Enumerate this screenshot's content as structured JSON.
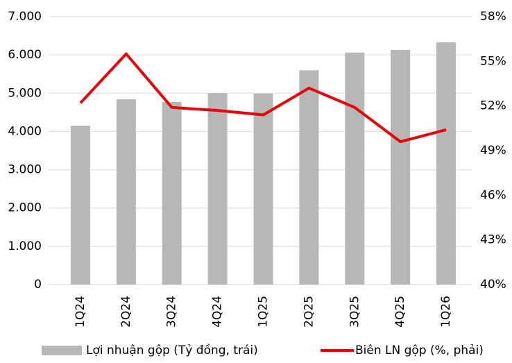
{
  "chart_data": {
    "type": "bar",
    "categories": [
      "1Q24",
      "2Q24",
      "3Q24",
      "4Q24",
      "1Q25",
      "2Q25",
      "3Q25",
      "4Q25",
      "1Q26"
    ],
    "series": [
      {
        "name": "Lợi nhuận gộp (Tỷ đồng, trái)",
        "color": "#b7b7b7",
        "type": "bar",
        "values": [
          4150,
          4840,
          4770,
          5000,
          4990,
          5600,
          6060,
          6130,
          6330
        ]
      },
      {
        "name": "Biên LN gộp (%, phải)",
        "color": "#e8000b",
        "type": "line",
        "axis": "y2",
        "values": [
          52.2,
          55.5,
          51.9,
          51.7,
          51.4,
          53.2,
          51.9,
          49.6,
          50.4
        ]
      }
    ],
    "ylim": [
      0,
      7000
    ],
    "yticks": [
      0,
      {
        "value": 1000,
        "label": "1.000"
      },
      {
        "value": 2000,
        "label": "2.000"
      },
      {
        "value": 3000,
        "label": "3.000"
      },
      {
        "value": 4000,
        "label": "4.000"
      },
      {
        "value": 5000,
        "label": "5.000"
      },
      {
        "value": 6000,
        "label": "6.000"
      },
      {
        "value": 7000,
        "label": "7.000"
      }
    ],
    "y2lim": [
      40,
      58
    ],
    "y2ticks": [
      {
        "value": 40,
        "label": "40%"
      },
      {
        "value": 43,
        "label": "43%"
      },
      {
        "value": 46,
        "label": "46%"
      },
      {
        "value": 49,
        "label": "49%"
      },
      {
        "value": 52,
        "label": "52%"
      },
      {
        "value": 55,
        "label": "55%"
      },
      {
        "value": 58,
        "label": "58%"
      }
    ],
    "grid": true,
    "legend": "bottom"
  }
}
